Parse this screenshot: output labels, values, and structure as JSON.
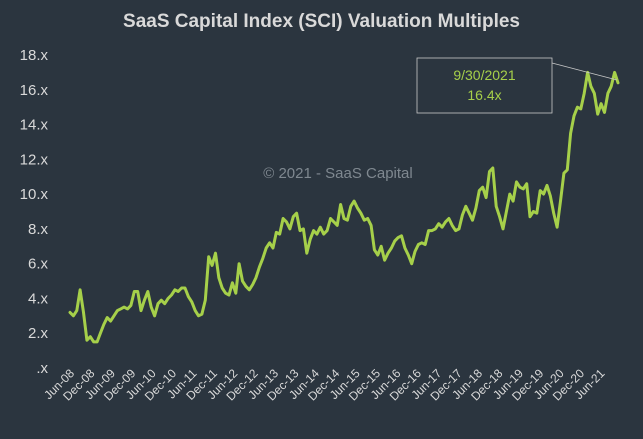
{
  "chart_data": {
    "type": "line",
    "title": "SaaS Capital Index (SCI) Valuation Multiples",
    "xlabel": "",
    "ylabel": "",
    "ylim": [
      0,
      18
    ],
    "yticks": [
      ".x",
      "2.x",
      "4.x",
      "6.x",
      "8.x",
      "10.x",
      "12.x",
      "14.x",
      "16.x",
      "18.x"
    ],
    "xticks": [
      "Jun-08",
      "Dec-08",
      "Jun-09",
      "Dec-09",
      "Jun-10",
      "Dec-10",
      "Jun-11",
      "Dec-11",
      "Jun-12",
      "Dec-12",
      "Jun-13",
      "Dec-13",
      "Jun-14",
      "Dec-14",
      "Jun-15",
      "Dec-15",
      "Jun-16",
      "Dec-16",
      "Jun-17",
      "Dec-17",
      "Jun-18",
      "Dec-18",
      "Jun-19",
      "Dec-19",
      "Jun-20",
      "Dec-20",
      "Jun-21"
    ],
    "watermark": "© 2021 - SaaS Capital",
    "annotation": {
      "date": "9/30/2021",
      "value": "16.4x"
    },
    "series": [
      {
        "name": "SCI",
        "values": [
          3.2,
          3.0,
          3.3,
          4.5,
          3.2,
          1.6,
          1.8,
          1.5,
          1.5,
          2.0,
          2.5,
          2.9,
          2.7,
          3.0,
          3.3,
          3.4,
          3.5,
          3.4,
          3.6,
          4.4,
          4.4,
          3.3,
          3.9,
          4.4,
          3.5,
          3.0,
          3.7,
          3.9,
          3.7,
          4.0,
          4.2,
          4.5,
          4.4,
          4.6,
          4.6,
          4.1,
          3.8,
          3.3,
          3.0,
          3.1,
          3.9,
          6.4,
          5.9,
          6.6,
          5.2,
          4.6,
          4.3,
          4.2,
          4.9,
          4.3,
          6.0,
          5.0,
          4.7,
          4.5,
          4.8,
          5.2,
          5.8,
          6.3,
          6.9,
          7.2,
          6.9,
          7.8,
          7.7,
          8.6,
          8.4,
          8.0,
          8.7,
          8.9,
          7.9,
          8.0,
          6.6,
          7.4,
          7.9,
          7.7,
          8.1,
          7.7,
          7.9,
          8.6,
          8.4,
          8.2,
          9.4,
          8.6,
          8.5,
          9.3,
          9.6,
          9.2,
          8.9,
          8.5,
          8.6,
          8.2,
          6.8,
          6.5,
          7.0,
          6.2,
          6.6,
          6.9,
          7.3,
          7.5,
          7.6,
          6.9,
          6.5,
          6.0,
          6.7,
          7.1,
          7.2,
          7.1,
          7.9,
          7.9,
          8.0,
          8.3,
          8.1,
          8.4,
          8.6,
          8.2,
          7.9,
          8.0,
          8.8,
          9.3,
          8.9,
          8.5,
          9.2,
          10.2,
          10.4,
          9.8,
          11.3,
          11.5,
          9.3,
          8.7,
          8.0,
          9.0,
          10.0,
          9.6,
          10.7,
          10.4,
          10.3,
          10.6,
          8.7,
          9.0,
          8.9,
          10.2,
          10.0,
          10.5,
          9.9,
          8.9,
          8.1,
          9.6,
          11.2,
          11.4,
          13.5,
          14.5,
          15.0,
          14.9,
          15.8,
          17.0,
          16.2,
          15.8,
          14.6,
          15.2,
          14.7,
          15.8,
          16.2,
          17.0,
          16.4
        ]
      }
    ]
  },
  "colors": {
    "background": "#2b353f",
    "text": "#d9d9d9",
    "line": "#a6d04a",
    "gridline": "#3f4a55",
    "watermark": "#7f8890"
  }
}
